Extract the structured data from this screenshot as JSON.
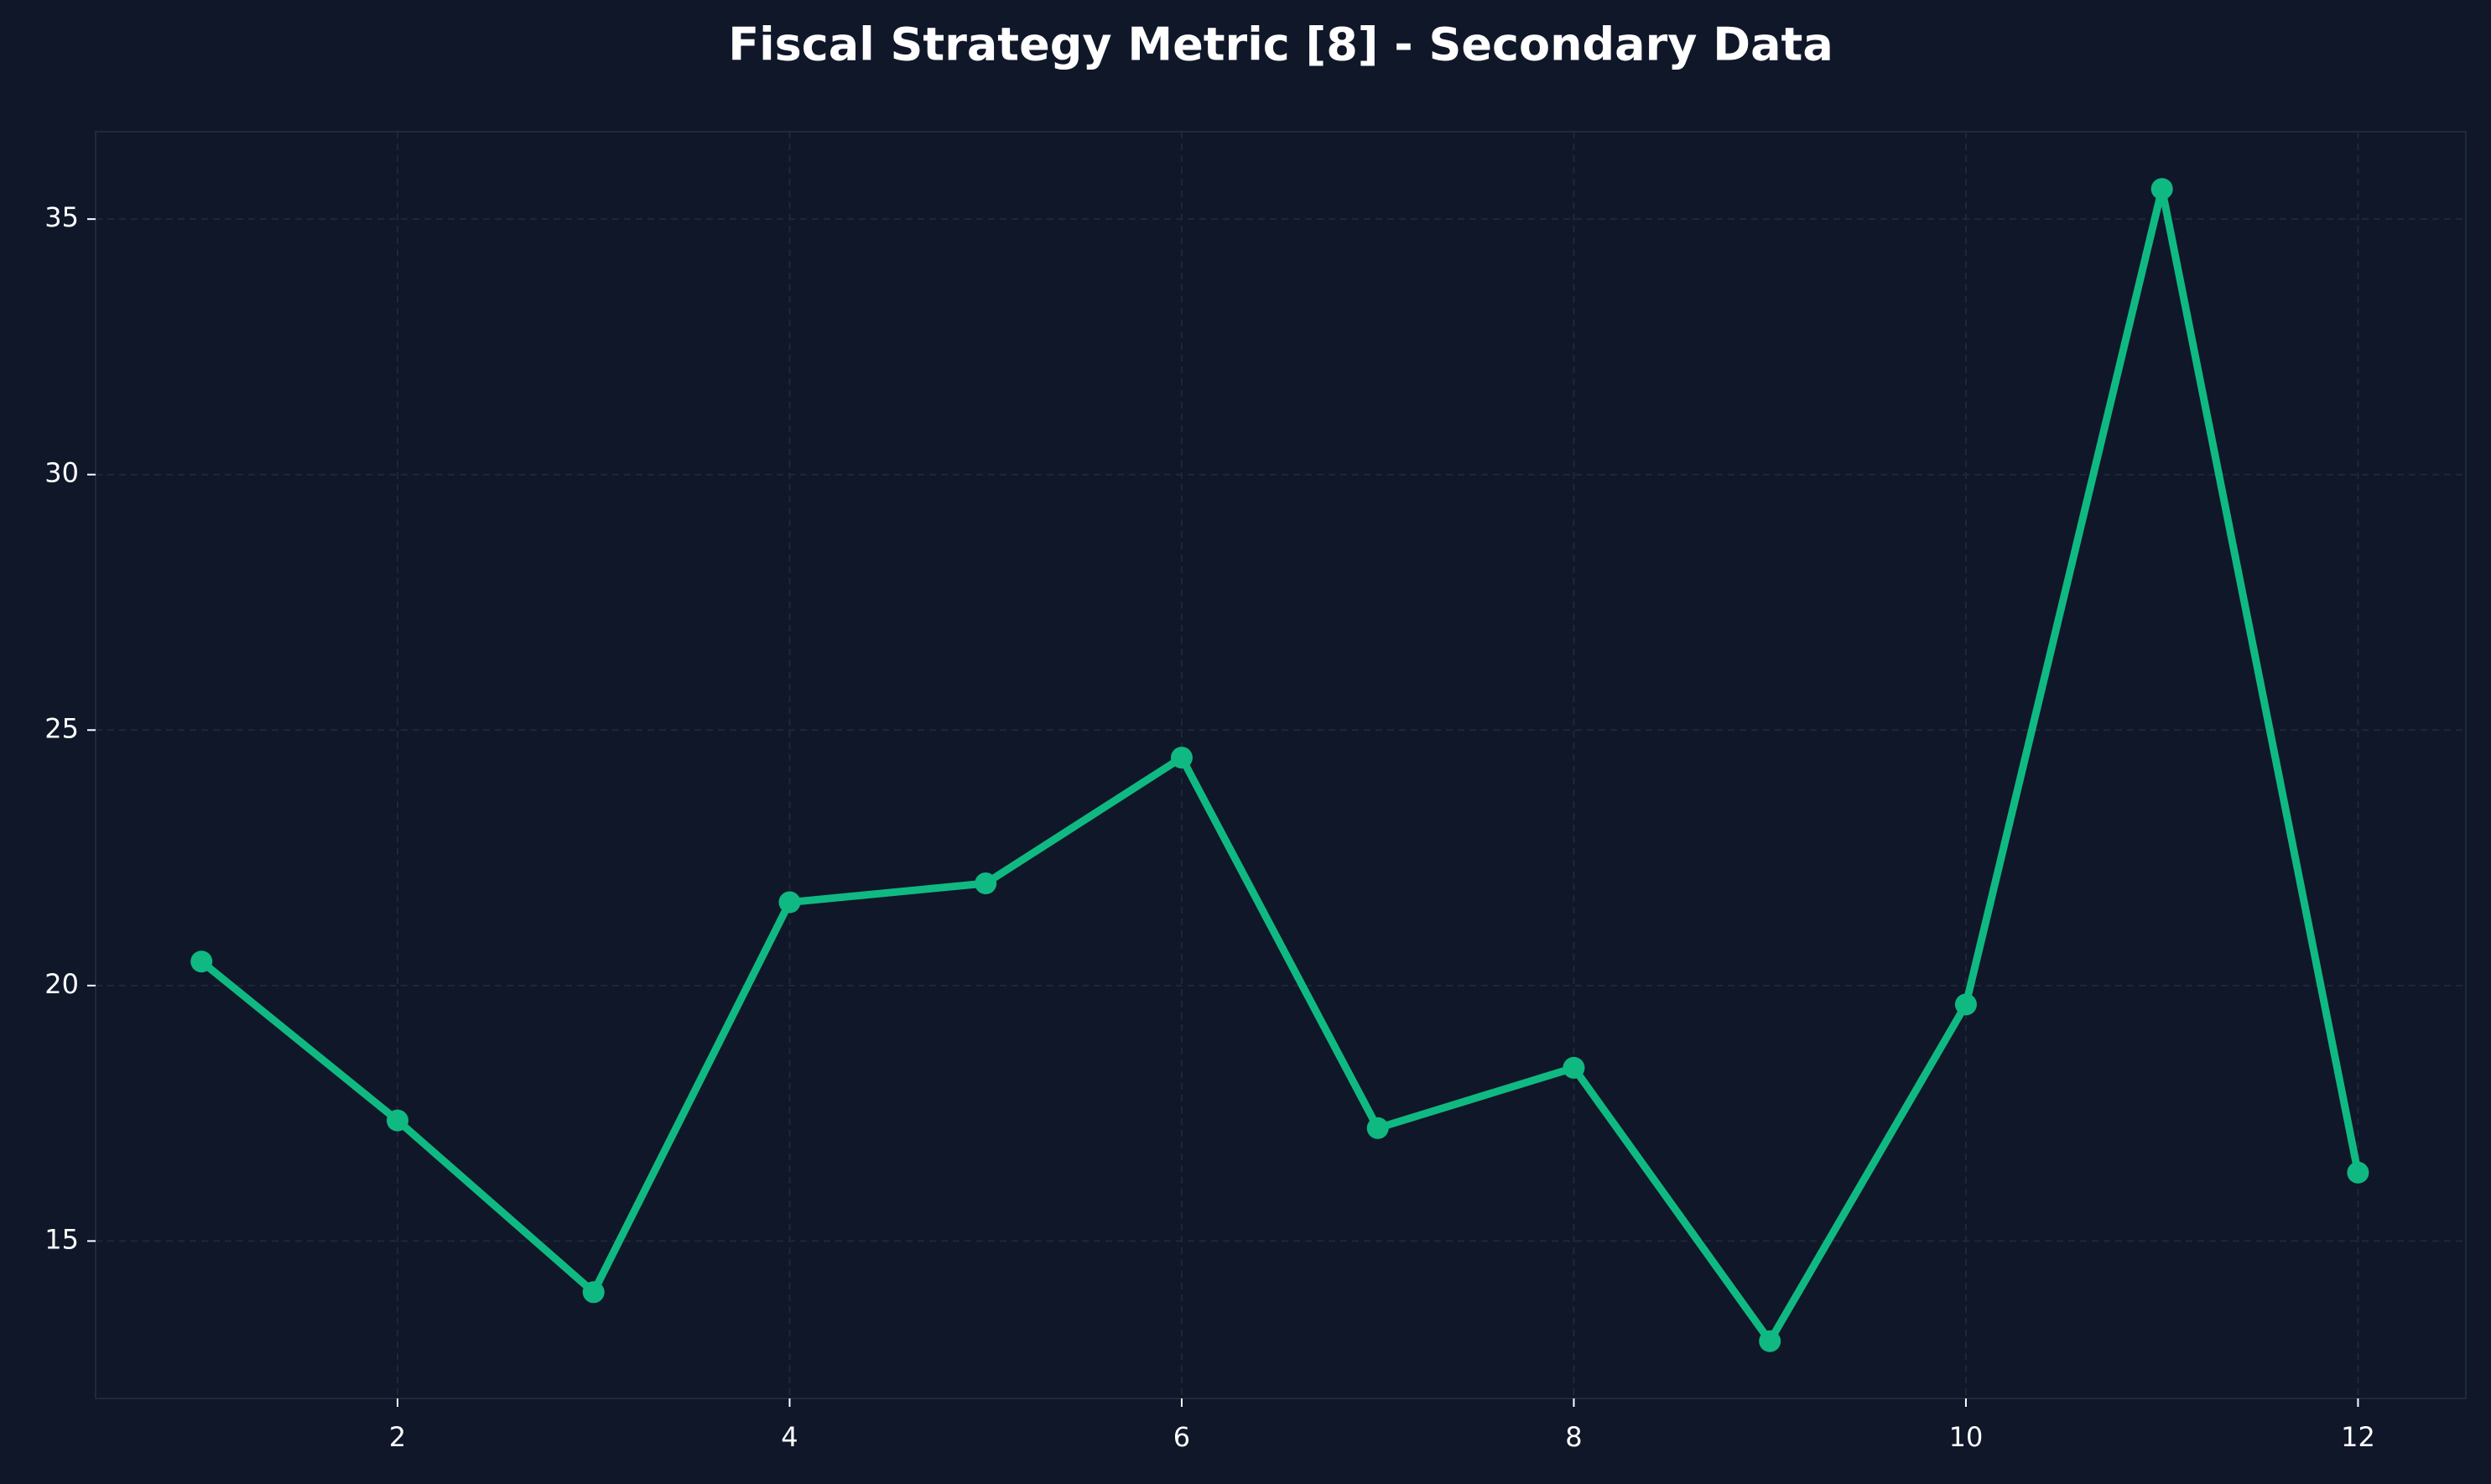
{
  "chart_data": {
    "type": "line",
    "title": "Fiscal Strategy Metric [8] - Secondary Data",
    "x": [
      1,
      2,
      3,
      4,
      5,
      6,
      7,
      8,
      9,
      10,
      11,
      12
    ],
    "series": [
      {
        "color": "#10b981",
        "values": [
          20.47,
          17.36,
          14.0,
          21.63,
          22.0,
          24.46,
          17.21,
          18.39,
          13.04,
          19.63,
          35.59,
          16.34
        ]
      }
    ],
    "xlim": [
      0.46,
      12.55
    ],
    "ylim": [
      11.92,
      36.71
    ],
    "xticks": [
      2,
      4,
      6,
      8,
      10,
      12
    ],
    "yticks": [
      15,
      20,
      25,
      30,
      35
    ],
    "grid": true
  }
}
